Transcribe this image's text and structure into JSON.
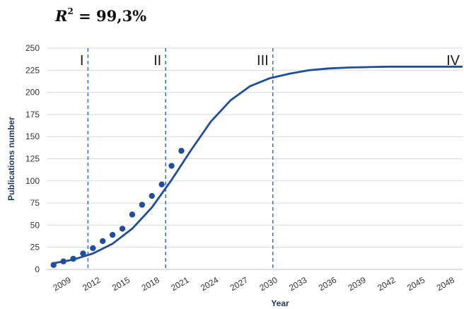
{
  "header": {
    "r2_symbol": "R",
    "r2_exponent": "2",
    "r2_value": " = 99,3%"
  },
  "colors": {
    "line": "#1f4e9c",
    "points": "#1f4e9c",
    "dashed": "#2f6fd0",
    "grid": "#d9d9d9",
    "axis": "#bfbfbf"
  },
  "chart_data": {
    "type": "scatter",
    "xlabel": "Year",
    "ylabel": "Publications number",
    "xlim": [
      2007.3,
      2049.6
    ],
    "ylim": [
      0,
      250
    ],
    "xticks": [
      2009,
      2012,
      2015,
      2018,
      2021,
      2024,
      2027,
      2030,
      2033,
      2036,
      2039,
      2042,
      2045,
      2048
    ],
    "yticks": [
      0,
      25,
      50,
      75,
      100,
      125,
      150,
      175,
      200,
      225,
      250
    ],
    "grid": "horizontal",
    "series": [
      {
        "kind": "points",
        "x": [
          2008,
          2009,
          2010,
          2011,
          2012,
          2013,
          2014,
          2015,
          2016,
          2017,
          2018,
          2019,
          2020,
          2021
        ],
        "y": [
          5,
          9,
          12,
          18,
          24,
          32,
          39,
          46,
          62,
          73,
          83,
          96,
          117,
          134
        ]
      },
      {
        "kind": "line",
        "x": [
          2008,
          2010,
          2012,
          2014,
          2016,
          2018,
          2020,
          2022,
          2024,
          2026,
          2028,
          2030,
          2032,
          2034,
          2036,
          2038,
          2040,
          2042,
          2044,
          2046,
          2048,
          2049.6
        ],
        "y": [
          7,
          11,
          18,
          29,
          46,
          70,
          101,
          135,
          167,
          191,
          207,
          216,
          221,
          225,
          227,
          228,
          228.5,
          229,
          229,
          229,
          229,
          229
        ]
      }
    ],
    "phase_lines": [
      {
        "x": 2011.5,
        "label": "I"
      },
      {
        "x": 2019.4,
        "label": "II"
      },
      {
        "x": 2030.3,
        "label": "III"
      },
      {
        "x": 2049.6,
        "label": "IV"
      }
    ]
  }
}
